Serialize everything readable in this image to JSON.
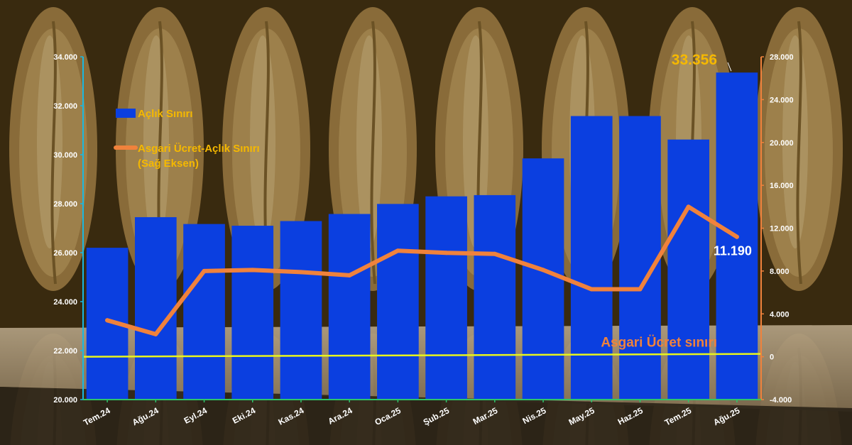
{
  "chart_data": {
    "type": "bar",
    "categories": [
      "Tem.24",
      "Ağu.24",
      "Eyl.24",
      "Eki.24",
      "Kas.24",
      "Ara.24",
      "Oca.25",
      "Şub.25",
      "Mar.25",
      "Nis.25",
      "May.25",
      "Haz.25",
      "Tem.25",
      "Ağu.25"
    ],
    "left_axis": {
      "ylim": [
        20000,
        34000
      ],
      "ticks": [
        "20.000",
        "22.000",
        "24.000",
        "26.000",
        "28.000",
        "30.000",
        "32.000",
        "34.000"
      ],
      "tick_values": [
        20000,
        22000,
        24000,
        26000,
        28000,
        30000,
        32000,
        34000
      ]
    },
    "right_axis": {
      "ylim": [
        -4000,
        28000
      ],
      "ticks": [
        "-4.000",
        "0",
        "4.000",
        "8.000",
        "12.000",
        "16.000",
        "20.000",
        "24.000",
        "28.000"
      ],
      "tick_values": [
        -4000,
        0,
        4000,
        8000,
        12000,
        16000,
        20000,
        24000,
        28000
      ]
    },
    "series": [
      {
        "name": "Açlık Sınırı",
        "type": "bar",
        "axis": "left",
        "color": "#0b3fe0",
        "values": [
          26200,
          27450,
          27170,
          27100,
          27290,
          27580,
          27990,
          28300,
          28350,
          29850,
          31580,
          31580,
          30620,
          33356
        ]
      },
      {
        "name": "Asgari Ücret-Açlık Sınırı (Sağ Eksen)",
        "type": "line",
        "axis": "right",
        "color": "#f0823c",
        "values": [
          3400,
          2100,
          8000,
          8100,
          7900,
          7600,
          9900,
          9700,
          9600,
          8100,
          6300,
          6300,
          14000,
          11190
        ]
      }
    ],
    "reference_line": {
      "label": "Asgari Ücret sınırı",
      "axis": "right",
      "color": "#e8f51c",
      "value": 0
    },
    "annotations": {
      "bar_last": "33.356",
      "line_last": "11.190"
    },
    "legend": {
      "placement": "top-left",
      "bar_label": "Açlık Sınırı",
      "line_label_1": "Asgari Ücret-Açlık Sınırı",
      "line_label_2": "(Sağ Eksen)"
    },
    "colors": {
      "left_axis": "#1ab8e0",
      "right_axis": "#f0823c",
      "baseline": "#2ec46a",
      "legend_text": "#f5b800",
      "annotation_bar": "#f5b800",
      "annotation_line": "#ffffff"
    }
  }
}
